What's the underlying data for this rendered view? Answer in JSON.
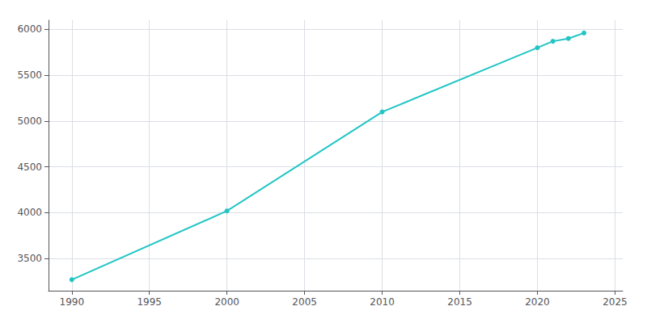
{
  "chart_data": {
    "type": "line",
    "x": [
      1990,
      2000,
      2010,
      2020,
      2021,
      2022,
      2023
    ],
    "values": [
      3270,
      4020,
      5100,
      5800,
      5870,
      5900,
      5960
    ],
    "color": "#22c5c5",
    "marker": "circle",
    "xlim": [
      1988.5,
      2025.5
    ],
    "ylim": [
      3150,
      6100
    ],
    "xticks": [
      1990,
      1995,
      2000,
      2005,
      2010,
      2015,
      2020,
      2025
    ],
    "yticks": [
      3500,
      4000,
      4500,
      5000,
      5500,
      6000
    ],
    "grid": true
  }
}
